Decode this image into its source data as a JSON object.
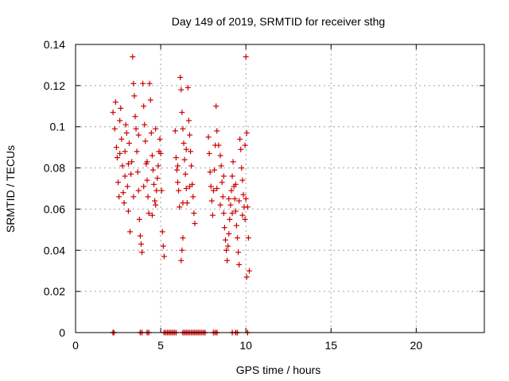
{
  "chart_data": {
    "type": "scatter",
    "title": "Day 149 of 2019, SRMTID for receiver sthg",
    "xlabel": "GPS time / hours",
    "ylabel": "SRMTID / TECUs",
    "xlim": [
      0,
      24
    ],
    "ylim": [
      0,
      0.14
    ],
    "x_ticks": [
      0,
      5,
      10,
      15,
      20
    ],
    "y_ticks": [
      0,
      0.02,
      0.04,
      0.06,
      0.08,
      0.1,
      0.12,
      0.14
    ],
    "x_tick_labels": [
      "0",
      "5",
      "10",
      "15",
      "20"
    ],
    "y_tick_labels": [
      "0",
      "0.02",
      "0.04",
      "0.06",
      "0.08",
      "0.1",
      "0.12",
      "0.14"
    ],
    "grid": true,
    "marker": "plus",
    "color": "#cc0000",
    "points": [
      [
        2.2,
        0.107
      ],
      [
        2.3,
        0.099
      ],
      [
        2.35,
        0.112
      ],
      [
        2.4,
        0.09
      ],
      [
        2.45,
        0.085
      ],
      [
        2.5,
        0.073
      ],
      [
        2.55,
        0.066
      ],
      [
        2.6,
        0.103
      ],
      [
        2.65,
        0.109
      ],
      [
        2.7,
        0.094
      ],
      [
        2.75,
        0.081
      ],
      [
        2.8,
        0.068
      ],
      [
        2.85,
        0.063
      ],
      [
        2.9,
        0.088
      ],
      [
        2.95,
        0.101
      ],
      [
        3.0,
        0.097
      ],
      [
        3.05,
        0.071
      ],
      [
        3.1,
        0.059
      ],
      [
        3.15,
        0.092
      ],
      [
        3.2,
        0.049
      ],
      [
        3.25,
        0.077
      ],
      [
        3.3,
        0.083
      ],
      [
        3.35,
        0.134
      ],
      [
        3.4,
        0.121
      ],
      [
        3.45,
        0.115
      ],
      [
        3.5,
        0.105
      ],
      [
        3.55,
        0.099
      ],
      [
        3.6,
        0.088
      ],
      [
        3.65,
        0.078
      ],
      [
        3.7,
        0.069
      ],
      [
        3.75,
        0.055
      ],
      [
        3.8,
        0.047
      ],
      [
        3.85,
        0.043
      ],
      [
        3.9,
        0.039
      ],
      [
        3.95,
        0.121
      ],
      [
        4.0,
        0.11
      ],
      [
        4.05,
        0.101
      ],
      [
        4.1,
        0.093
      ],
      [
        4.15,
        0.082
      ],
      [
        4.2,
        0.074
      ],
      [
        4.25,
        0.066
      ],
      [
        4.3,
        0.058
      ],
      [
        4.35,
        0.121
      ],
      [
        4.4,
        0.113
      ],
      [
        4.45,
        0.097
      ],
      [
        4.5,
        0.086
      ],
      [
        4.55,
        0.079
      ],
      [
        4.6,
        0.072
      ],
      [
        4.65,
        0.064
      ],
      [
        4.7,
        0.062
      ],
      [
        4.75,
        0.069
      ],
      [
        4.8,
        0.075
      ],
      [
        4.85,
        0.081
      ],
      [
        4.9,
        0.088
      ],
      [
        4.95,
        0.094
      ],
      [
        5.0,
        0.087
      ],
      [
        5.05,
        0.069
      ],
      [
        5.1,
        0.049
      ],
      [
        5.15,
        0.042
      ],
      [
        5.2,
        0.037
      ],
      [
        5.85,
        0.098
      ],
      [
        5.9,
        0.085
      ],
      [
        5.95,
        0.079
      ],
      [
        6.0,
        0.073
      ],
      [
        6.05,
        0.069
      ],
      [
        6.1,
        0.061
      ],
      [
        6.15,
        0.124
      ],
      [
        6.2,
        0.118
      ],
      [
        6.25,
        0.107
      ],
      [
        6.3,
        0.099
      ],
      [
        6.35,
        0.092
      ],
      [
        6.4,
        0.084
      ],
      [
        6.45,
        0.077
      ],
      [
        6.5,
        0.07
      ],
      [
        6.55,
        0.063
      ],
      [
        6.6,
        0.119
      ],
      [
        6.65,
        0.103
      ],
      [
        6.7,
        0.096
      ],
      [
        6.75,
        0.088
      ],
      [
        6.8,
        0.081
      ],
      [
        6.85,
        0.072
      ],
      [
        6.9,
        0.066
      ],
      [
        6.95,
        0.058
      ],
      [
        7.0,
        0.053
      ],
      [
        6.2,
        0.035
      ],
      [
        6.25,
        0.04
      ],
      [
        6.3,
        0.046
      ],
      [
        7.8,
        0.095
      ],
      [
        7.85,
        0.087
      ],
      [
        7.9,
        0.078
      ],
      [
        7.95,
        0.071
      ],
      [
        8.0,
        0.064
      ],
      [
        8.05,
        0.057
      ],
      [
        8.1,
        0.069
      ],
      [
        8.15,
        0.079
      ],
      [
        8.2,
        0.091
      ],
      [
        8.25,
        0.11
      ],
      [
        8.3,
        0.098
      ],
      [
        8.4,
        0.091
      ],
      [
        8.5,
        0.086
      ],
      [
        8.55,
        0.081
      ],
      [
        8.6,
        0.073
      ],
      [
        8.65,
        0.066
      ],
      [
        8.7,
        0.058
      ],
      [
        8.75,
        0.051
      ],
      [
        8.8,
        0.045
      ],
      [
        8.85,
        0.04
      ],
      [
        8.9,
        0.035
      ],
      [
        8.95,
        0.042
      ],
      [
        9.0,
        0.048
      ],
      [
        9.05,
        0.055
      ],
      [
        9.1,
        0.062
      ],
      [
        9.15,
        0.069
      ],
      [
        9.2,
        0.076
      ],
      [
        9.25,
        0.083
      ],
      [
        9.3,
        0.071
      ],
      [
        9.35,
        0.065
      ],
      [
        9.4,
        0.059
      ],
      [
        9.45,
        0.052
      ],
      [
        9.5,
        0.046
      ],
      [
        9.55,
        0.039
      ],
      [
        9.6,
        0.033
      ],
      [
        9.65,
        0.094
      ],
      [
        9.7,
        0.089
      ],
      [
        9.75,
        0.08
      ],
      [
        9.8,
        0.074
      ],
      [
        9.85,
        0.067
      ],
      [
        9.9,
        0.061
      ],
      [
        9.95,
        0.055
      ],
      [
        10.0,
        0.134
      ],
      [
        10.05,
        0.097
      ],
      [
        10.1,
        0.061
      ],
      [
        10.15,
        0.046
      ],
      [
        10.2,
        0.03
      ],
      [
        10.05,
        0.027
      ],
      [
        9.95,
        0.091
      ],
      [
        2.6,
        0.087
      ],
      [
        2.9,
        0.076
      ],
      [
        3.1,
        0.082
      ],
      [
        3.4,
        0.066
      ],
      [
        3.7,
        0.096
      ],
      [
        4.0,
        0.071
      ],
      [
        4.2,
        0.083
      ],
      [
        4.5,
        0.057
      ],
      [
        4.7,
        0.099
      ],
      [
        6.0,
        0.081
      ],
      [
        6.3,
        0.063
      ],
      [
        6.5,
        0.089
      ],
      [
        6.7,
        0.071
      ],
      [
        8.3,
        0.07
      ],
      [
        8.5,
        0.062
      ],
      [
        8.7,
        0.076
      ],
      [
        9.0,
        0.065
      ],
      [
        9.2,
        0.058
      ],
      [
        9.4,
        0.072
      ],
      [
        9.6,
        0.064
      ],
      [
        9.8,
        0.057
      ],
      [
        10.0,
        0.065
      ]
    ],
    "zero_points": [
      2.2,
      2.25,
      3.8,
      3.9,
      4.2,
      4.3,
      5.2,
      5.3,
      5.4,
      5.5,
      5.6,
      5.7,
      5.8,
      5.9,
      6.3,
      6.4,
      6.5,
      6.6,
      6.7,
      6.8,
      6.9,
      7.0,
      7.1,
      7.2,
      7.3,
      7.4,
      7.5,
      7.6,
      8.1,
      8.2,
      8.3,
      9.2,
      9.4,
      9.5,
      10.1
    ]
  }
}
